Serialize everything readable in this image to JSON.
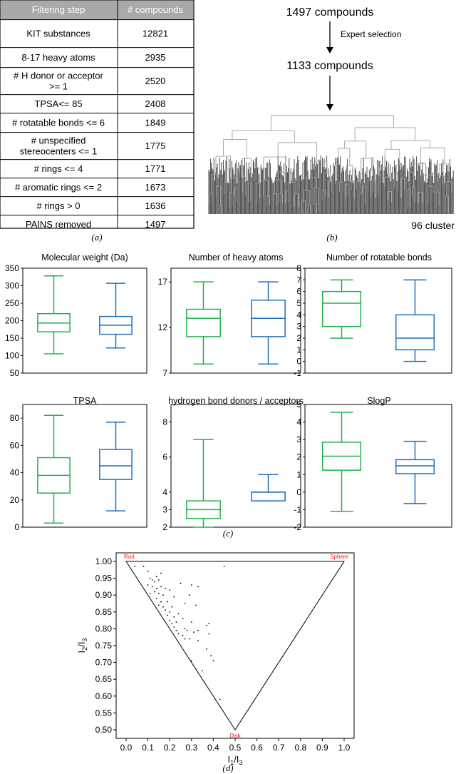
{
  "panels": {
    "a_label": "(a)",
    "b_label": "(b)",
    "c_label": "(c)",
    "d_label": "(d)"
  },
  "filter_table": {
    "headers": [
      "Filtering step",
      "# compounds"
    ],
    "rows": [
      {
        "step": [
          "KIT substances"
        ],
        "count": "12821"
      },
      {
        "step": [
          "8-17 heavy atoms"
        ],
        "count": "2935"
      },
      {
        "step": [
          "# H donor or acceptor",
          ">= 1"
        ],
        "count": "2520"
      },
      {
        "step": [
          "TPSA<= 85"
        ],
        "count": "2408"
      },
      {
        "step": [
          "# rotatable bonds <= 6"
        ],
        "count": "1849"
      },
      {
        "step": [
          "# unspecified",
          "stereocenters <= 1"
        ],
        "count": "1775"
      },
      {
        "step": [
          "# rings <= 4"
        ],
        "count": "1771"
      },
      {
        "step": [
          "# aromatic rings <= 2"
        ],
        "count": "1673"
      },
      {
        "step": [
          "# rings > 0"
        ],
        "count": "1636"
      },
      {
        "step": [
          "PAINS removed"
        ],
        "count": "1497"
      }
    ]
  },
  "flow": {
    "top": "1497 compounds",
    "step": "Expert selection",
    "middle": "1133 compounds",
    "cluster_label": "96 cluster"
  },
  "colors": {
    "green": "#22b24c",
    "blue": "#1f6fc0",
    "dendro_light": "#a0a0a0",
    "dendro_dark": "#3a3a3a",
    "annotation_red": "#e02020"
  },
  "chart_data": [
    {
      "type": "box",
      "title": "Molecular weight (Da)",
      "ylim": [
        50,
        350
      ],
      "yticks": [
        50,
        100,
        150,
        200,
        250,
        300,
        350
      ],
      "boxes": [
        {
          "min": 105,
          "q1": 168,
          "median": 193,
          "q3": 220,
          "max": 328,
          "color": "green"
        },
        {
          "min": 122,
          "q1": 161,
          "median": 187,
          "q3": 212,
          "max": 307,
          "color": "blue"
        }
      ]
    },
    {
      "type": "box",
      "title": "Number of heavy atoms",
      "ylim": [
        7,
        18.5
      ],
      "yticks": [
        7,
        12,
        17
      ],
      "boxes": [
        {
          "min": 8,
          "q1": 11,
          "median": 13,
          "q3": 14,
          "max": 17,
          "color": "green"
        },
        {
          "min": 8,
          "q1": 11,
          "median": 13,
          "q3": 15,
          "max": 17,
          "color": "blue"
        }
      ]
    },
    {
      "type": "box",
      "title": "Number of rotatable bonds",
      "ylim": [
        -1,
        8
      ],
      "yticks": [
        -1,
        0,
        1,
        2,
        3,
        4,
        5,
        6,
        7,
        8
      ],
      "boxes": [
        {
          "min": 2,
          "q1": 3,
          "median": 5,
          "q3": 6,
          "max": 7,
          "color": "green"
        },
        {
          "min": 0,
          "q1": 1,
          "median": 2,
          "q3": 4,
          "max": 7,
          "color": "blue"
        }
      ]
    },
    {
      "type": "box",
      "title": "TPSA",
      "ylim": [
        0,
        90
      ],
      "yticks": [
        0,
        20,
        40,
        60,
        80
      ],
      "boxes": [
        {
          "min": 3,
          "q1": 25,
          "median": 38,
          "q3": 51,
          "max": 82,
          "color": "green"
        },
        {
          "min": 12,
          "q1": 35,
          "median": 45,
          "q3": 57,
          "max": 77,
          "color": "blue"
        }
      ]
    },
    {
      "type": "box",
      "title": "hydrogen bond donors / acceptors",
      "ylim": [
        2,
        9
      ],
      "yticks": [
        2,
        3,
        4,
        6,
        8
      ],
      "log_like": true,
      "boxes": [
        {
          "min": 2,
          "q1": 2.5,
          "median": 3,
          "q3": 3.5,
          "max": 7,
          "color": "green"
        },
        {
          "min": 3.5,
          "q1": 3.5,
          "median": 4,
          "q3": 4,
          "max": 5,
          "color": "blue"
        }
      ]
    },
    {
      "type": "box",
      "title": "SlogP",
      "ylim": [
        -2,
        5
      ],
      "yticks": [
        -2,
        -1,
        0,
        1,
        2,
        3,
        4,
        5
      ],
      "boxes": [
        {
          "min": -1.1,
          "q1": 1.25,
          "median": 2.05,
          "q3": 2.85,
          "max": 4.55,
          "color": "green"
        },
        {
          "min": -0.65,
          "q1": 1.05,
          "median": 1.5,
          "q3": 1.85,
          "max": 2.9,
          "color": "blue"
        }
      ]
    },
    {
      "type": "scatter",
      "xlabel": "I1/I3",
      "ylabel": "I2/I3",
      "xlim": [
        0,
        1.0
      ],
      "ylim": [
        0.5,
        1.0
      ],
      "xticks": [
        0.0,
        0.1,
        0.2,
        0.3,
        0.4,
        0.5,
        0.6,
        0.7,
        0.8,
        0.9,
        1.0
      ],
      "yticks": [
        0.5,
        0.55,
        0.6,
        0.65,
        0.7,
        0.75,
        0.8,
        0.85,
        0.9,
        0.95,
        1.0
      ],
      "corners": {
        "rod": "Rod",
        "sphere": "Sphere",
        "disk": "Disk"
      },
      "points": [
        [
          0.04,
          0.985
        ],
        [
          0.08,
          0.985
        ],
        [
          0.45,
          0.985
        ],
        [
          0.1,
          0.97
        ],
        [
          0.16,
          0.965
        ],
        [
          0.14,
          0.955
        ],
        [
          0.11,
          0.95
        ],
        [
          0.12,
          0.945
        ],
        [
          0.13,
          0.94
        ],
        [
          0.15,
          0.945
        ],
        [
          0.25,
          0.935
        ],
        [
          0.3,
          0.93
        ],
        [
          0.33,
          0.925
        ],
        [
          0.1,
          0.93
        ],
        [
          0.12,
          0.925
        ],
        [
          0.14,
          0.92
        ],
        [
          0.16,
          0.925
        ],
        [
          0.18,
          0.92
        ],
        [
          0.13,
          0.91
        ],
        [
          0.15,
          0.905
        ],
        [
          0.2,
          0.915
        ],
        [
          0.17,
          0.9
        ],
        [
          0.11,
          0.905
        ],
        [
          0.29,
          0.9
        ],
        [
          0.22,
          0.895
        ],
        [
          0.14,
          0.89
        ],
        [
          0.16,
          0.88
        ],
        [
          0.19,
          0.88
        ],
        [
          0.27,
          0.875
        ],
        [
          0.32,
          0.87
        ],
        [
          0.15,
          0.87
        ],
        [
          0.17,
          0.865
        ],
        [
          0.21,
          0.865
        ],
        [
          0.18,
          0.855
        ],
        [
          0.2,
          0.85
        ],
        [
          0.24,
          0.845
        ],
        [
          0.19,
          0.84
        ],
        [
          0.22,
          0.835
        ],
        [
          0.26,
          0.83
        ],
        [
          0.2,
          0.825
        ],
        [
          0.23,
          0.82
        ],
        [
          0.3,
          0.82
        ],
        [
          0.21,
          0.815
        ],
        [
          0.38,
          0.815
        ],
        [
          0.37,
          0.81
        ],
        [
          0.22,
          0.805
        ],
        [
          0.27,
          0.8
        ],
        [
          0.23,
          0.795
        ],
        [
          0.28,
          0.795
        ],
        [
          0.33,
          0.795
        ],
        [
          0.31,
          0.79
        ],
        [
          0.24,
          0.785
        ],
        [
          0.38,
          0.785
        ],
        [
          0.26,
          0.78
        ],
        [
          0.27,
          0.77
        ],
        [
          0.29,
          0.77
        ],
        [
          0.33,
          0.765
        ],
        [
          0.37,
          0.74
        ],
        [
          0.39,
          0.72
        ],
        [
          0.3,
          0.705
        ],
        [
          0.4,
          0.705
        ],
        [
          0.35,
          0.675
        ],
        [
          0.43,
          0.59
        ]
      ]
    }
  ]
}
